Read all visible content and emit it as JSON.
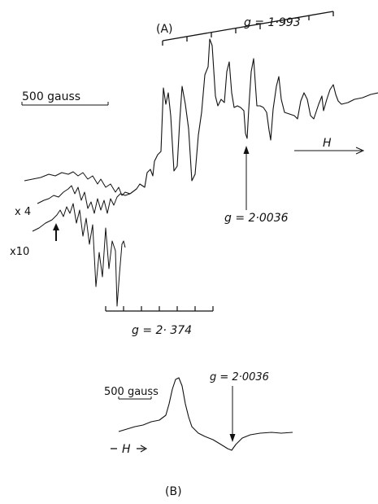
{
  "panel_a": {
    "label": "(A)",
    "scale_bar_label": "500 gauss",
    "g_top": "g = 1·993",
    "g_center": "g = 2·0036",
    "g_bottom": "g = 2· 374",
    "gain_x4": "x 4",
    "gain_x10": "x10",
    "field_label": "H"
  },
  "panel_b": {
    "label": "(B)",
    "scale_bar_label": "500 gauss",
    "g_center": "g = 2·0036",
    "field_label": "H"
  },
  "colors": {
    "ink": "#111111",
    "background": "#ffffff"
  }
}
